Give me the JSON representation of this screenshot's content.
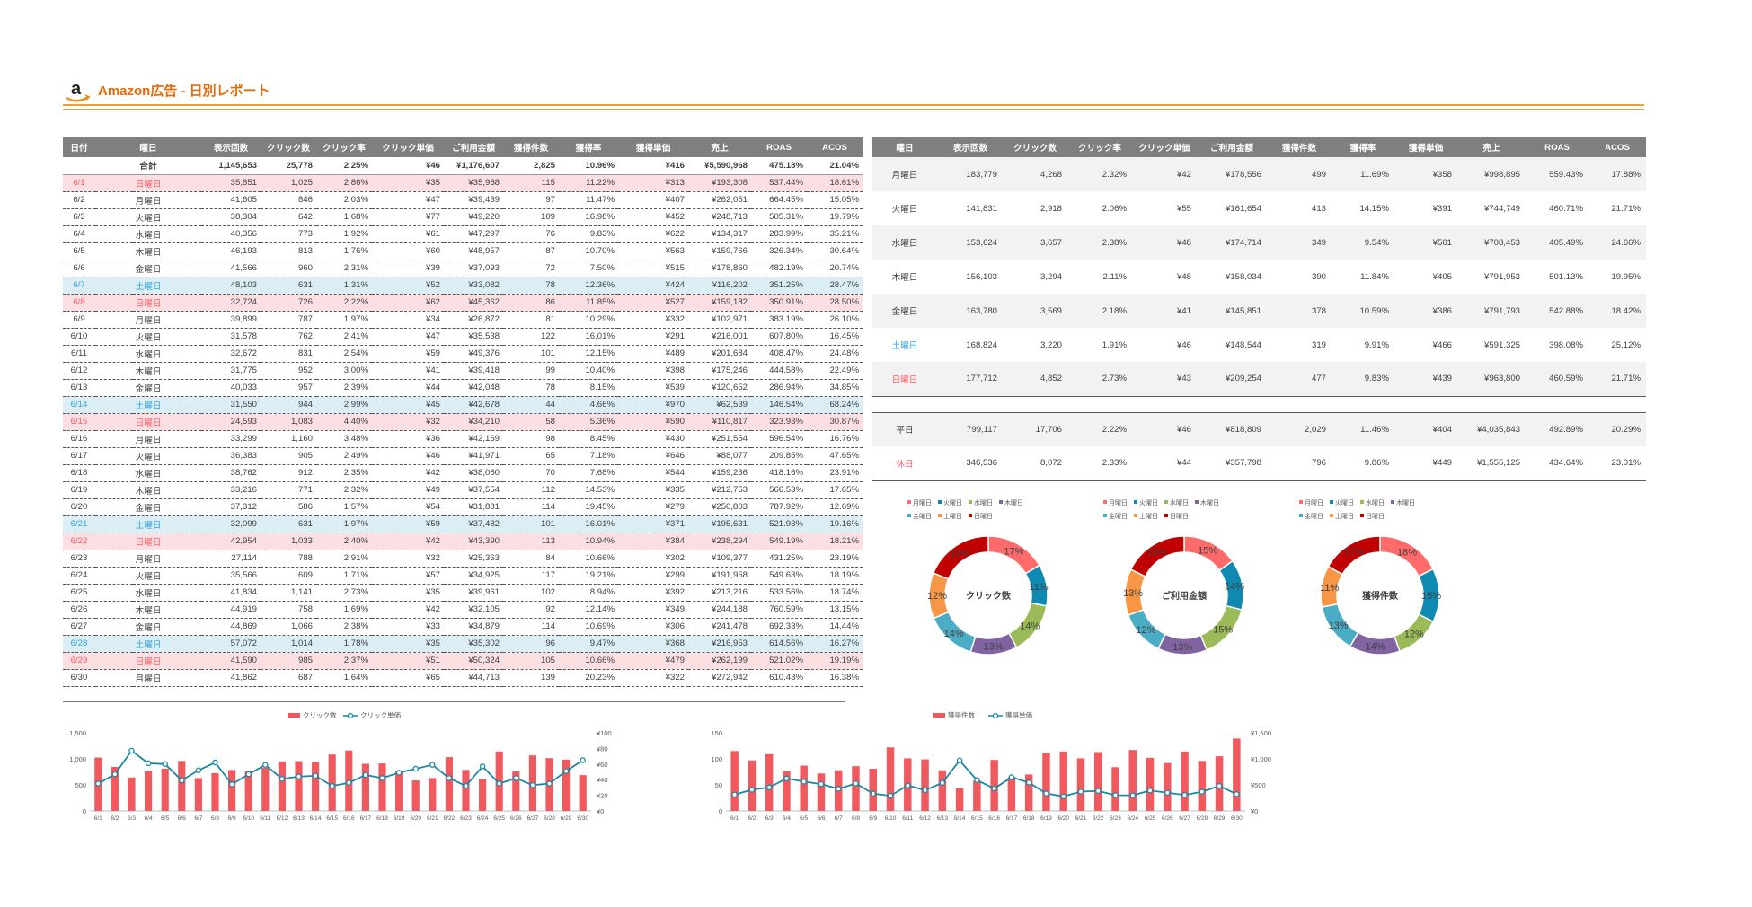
{
  "report": {
    "title": "Amazon広告 - 日別レポート",
    "logo_letter": "a"
  },
  "daily": {
    "headers": [
      "日付",
      "曜日",
      "表示回数",
      "クリック数",
      "クリック率",
      "クリック単価",
      "ご利用金額",
      "獲得件数",
      "獲得率",
      "獲得単価",
      "売上",
      "ROAS",
      "ACOS"
    ],
    "total": [
      "",
      "合計",
      "1,145,653",
      "25,778",
      "2.25%",
      "¥46",
      "¥1,176,607",
      "2,825",
      "10.96%",
      "¥416",
      "¥5,590,968",
      "475.18%",
      "21.04%"
    ],
    "rows": [
      {
        "type": "sun",
        "cells": [
          "6/1",
          "日曜日",
          "35,851",
          "1,025",
          "2.86%",
          "¥35",
          "¥35,968",
          "115",
          "11.22%",
          "¥313",
          "¥193,308",
          "537.44%",
          "18.61%"
        ]
      },
      {
        "type": "",
        "cells": [
          "6/2",
          "月曜日",
          "41,605",
          "846",
          "2.03%",
          "¥47",
          "¥39,439",
          "97",
          "11.47%",
          "¥407",
          "¥262,051",
          "664.45%",
          "15.05%"
        ]
      },
      {
        "type": "",
        "cells": [
          "6/3",
          "火曜日",
          "38,304",
          "642",
          "1.68%",
          "¥77",
          "¥49,220",
          "109",
          "16.98%",
          "¥452",
          "¥248,713",
          "505.31%",
          "19.79%"
        ]
      },
      {
        "type": "",
        "cells": [
          "6/4",
          "水曜日",
          "40,356",
          "773",
          "1.92%",
          "¥61",
          "¥47,297",
          "76",
          "9.83%",
          "¥622",
          "¥134,317",
          "283.99%",
          "35.21%"
        ]
      },
      {
        "type": "",
        "cells": [
          "6/5",
          "木曜日",
          "46,193",
          "813",
          "1.76%",
          "¥60",
          "¥48,957",
          "87",
          "10.70%",
          "¥563",
          "¥159,766",
          "326.34%",
          "30.64%"
        ]
      },
      {
        "type": "",
        "cells": [
          "6/6",
          "金曜日",
          "41,566",
          "960",
          "2.31%",
          "¥39",
          "¥37,093",
          "72",
          "7.50%",
          "¥515",
          "¥178,860",
          "482.19%",
          "20.74%"
        ]
      },
      {
        "type": "sat",
        "cells": [
          "6/7",
          "土曜日",
          "48,103",
          "631",
          "1.31%",
          "¥52",
          "¥33,082",
          "78",
          "12.36%",
          "¥424",
          "¥116,202",
          "351.25%",
          "28.47%"
        ]
      },
      {
        "type": "sun",
        "cells": [
          "6/8",
          "日曜日",
          "32,724",
          "726",
          "2.22%",
          "¥62",
          "¥45,362",
          "86",
          "11.85%",
          "¥527",
          "¥159,182",
          "350.91%",
          "28.50%"
        ]
      },
      {
        "type": "",
        "cells": [
          "6/9",
          "月曜日",
          "39,899",
          "787",
          "1.97%",
          "¥34",
          "¥26,872",
          "81",
          "10.29%",
          "¥332",
          "¥102,971",
          "383.19%",
          "26.10%"
        ]
      },
      {
        "type": "",
        "cells": [
          "6/10",
          "火曜日",
          "31,578",
          "762",
          "2.41%",
          "¥47",
          "¥35,538",
          "122",
          "16.01%",
          "¥291",
          "¥216,001",
          "607.80%",
          "16.45%"
        ]
      },
      {
        "type": "",
        "cells": [
          "6/11",
          "水曜日",
          "32,672",
          "831",
          "2.54%",
          "¥59",
          "¥49,376",
          "101",
          "12.15%",
          "¥489",
          "¥201,684",
          "408.47%",
          "24.48%"
        ]
      },
      {
        "type": "",
        "cells": [
          "6/12",
          "木曜日",
          "31,775",
          "952",
          "3.00%",
          "¥41",
          "¥39,418",
          "99",
          "10.40%",
          "¥398",
          "¥175,246",
          "444.58%",
          "22.49%"
        ]
      },
      {
        "type": "",
        "cells": [
          "6/13",
          "金曜日",
          "40,033",
          "957",
          "2.39%",
          "¥44",
          "¥42,048",
          "78",
          "8.15%",
          "¥539",
          "¥120,652",
          "286.94%",
          "34.85%"
        ]
      },
      {
        "type": "sat",
        "cells": [
          "6/14",
          "土曜日",
          "31,550",
          "944",
          "2.99%",
          "¥45",
          "¥42,678",
          "44",
          "4.66%",
          "¥970",
          "¥62,539",
          "146.54%",
          "68.24%"
        ]
      },
      {
        "type": "sun",
        "cells": [
          "6/15",
          "日曜日",
          "24,593",
          "1,083",
          "4.40%",
          "¥32",
          "¥34,210",
          "58",
          "5.36%",
          "¥590",
          "¥110,817",
          "323.93%",
          "30.87%"
        ]
      },
      {
        "type": "",
        "cells": [
          "6/16",
          "月曜日",
          "33,299",
          "1,160",
          "3.48%",
          "¥36",
          "¥42,169",
          "98",
          "8.45%",
          "¥430",
          "¥251,554",
          "596.54%",
          "16.76%"
        ]
      },
      {
        "type": "",
        "cells": [
          "6/17",
          "火曜日",
          "36,383",
          "905",
          "2.49%",
          "¥46",
          "¥41,971",
          "65",
          "7.18%",
          "¥646",
          "¥88,077",
          "209.85%",
          "47.65%"
        ]
      },
      {
        "type": "",
        "cells": [
          "6/18",
          "水曜日",
          "38,762",
          "912",
          "2.35%",
          "¥42",
          "¥38,080",
          "70",
          "7.68%",
          "¥544",
          "¥159,236",
          "418.16%",
          "23.91%"
        ]
      },
      {
        "type": "",
        "cells": [
          "6/19",
          "木曜日",
          "33,216",
          "771",
          "2.32%",
          "¥49",
          "¥37,554",
          "112",
          "14.53%",
          "¥335",
          "¥212,753",
          "566.53%",
          "17.65%"
        ]
      },
      {
        "type": "",
        "cells": [
          "6/20",
          "金曜日",
          "37,312",
          "586",
          "1.57%",
          "¥54",
          "¥31,831",
          "114",
          "19.45%",
          "¥279",
          "¥250,803",
          "787.92%",
          "12.69%"
        ]
      },
      {
        "type": "sat",
        "cells": [
          "6/21",
          "土曜日",
          "32,099",
          "631",
          "1.97%",
          "¥59",
          "¥37,482",
          "101",
          "16.01%",
          "¥371",
          "¥195,631",
          "521.93%",
          "19.16%"
        ]
      },
      {
        "type": "sun",
        "cells": [
          "6/22",
          "日曜日",
          "42,954",
          "1,033",
          "2.40%",
          "¥42",
          "¥43,390",
          "113",
          "10.94%",
          "¥384",
          "¥238,294",
          "549.19%",
          "18.21%"
        ]
      },
      {
        "type": "",
        "cells": [
          "6/23",
          "月曜日",
          "27,114",
          "788",
          "2.91%",
          "¥32",
          "¥25,363",
          "84",
          "10.66%",
          "¥302",
          "¥109,377",
          "431.25%",
          "23.19%"
        ]
      },
      {
        "type": "",
        "cells": [
          "6/24",
          "火曜日",
          "35,566",
          "609",
          "1.71%",
          "¥57",
          "¥34,925",
          "117",
          "19.21%",
          "¥299",
          "¥191,958",
          "549.63%",
          "18.19%"
        ]
      },
      {
        "type": "",
        "cells": [
          "6/25",
          "水曜日",
          "41,834",
          "1,141",
          "2.73%",
          "¥35",
          "¥39,961",
          "102",
          "8.94%",
          "¥392",
          "¥213,216",
          "533.56%",
          "18.74%"
        ]
      },
      {
        "type": "",
        "cells": [
          "6/26",
          "木曜日",
          "44,919",
          "758",
          "1.69%",
          "¥42",
          "¥32,105",
          "92",
          "12.14%",
          "¥349",
          "¥244,188",
          "760.59%",
          "13.15%"
        ]
      },
      {
        "type": "",
        "cells": [
          "6/27",
          "金曜日",
          "44,869",
          "1,066",
          "2.38%",
          "¥33",
          "¥34,879",
          "114",
          "10.69%",
          "¥306",
          "¥241,478",
          "692.33%",
          "14.44%"
        ]
      },
      {
        "type": "sat",
        "cells": [
          "6/28",
          "土曜日",
          "57,072",
          "1,014",
          "1.78%",
          "¥35",
          "¥35,302",
          "96",
          "9.47%",
          "¥368",
          "¥216,953",
          "614.56%",
          "16.27%"
        ]
      },
      {
        "type": "sun",
        "cells": [
          "6/29",
          "日曜日",
          "41,590",
          "985",
          "2.37%",
          "¥51",
          "¥50,324",
          "105",
          "10.66%",
          "¥479",
          "¥262,199",
          "521.02%",
          "19.19%"
        ]
      },
      {
        "type": "",
        "cells": [
          "6/30",
          "月曜日",
          "41,862",
          "687",
          "1.64%",
          "¥65",
          "¥44,713",
          "139",
          "20.23%",
          "¥322",
          "¥272,942",
          "610.43%",
          "16.38%"
        ]
      }
    ]
  },
  "weekday": {
    "headers": [
      "曜日",
      "表示回数",
      "クリック数",
      "クリック率",
      "クリック単価",
      "ご利用金額",
      "獲得件数",
      "獲得率",
      "獲得単価",
      "売上",
      "ROAS",
      "ACOS"
    ],
    "rows": [
      {
        "type": "",
        "cells": [
          "月曜日",
          "183,779",
          "4,268",
          "2.32%",
          "¥42",
          "¥178,556",
          "499",
          "11.69%",
          "¥358",
          "¥998,895",
          "559.43%",
          "17.88%"
        ]
      },
      {
        "type": "",
        "cells": [
          "火曜日",
          "141,831",
          "2,918",
          "2.06%",
          "¥55",
          "¥161,654",
          "413",
          "14.15%",
          "¥391",
          "¥744,749",
          "460.71%",
          "21.71%"
        ]
      },
      {
        "type": "",
        "cells": [
          "水曜日",
          "153,624",
          "3,657",
          "2.38%",
          "¥48",
          "¥174,714",
          "349",
          "9.54%",
          "¥501",
          "¥708,453",
          "405.49%",
          "24.66%"
        ]
      },
      {
        "type": "",
        "cells": [
          "木曜日",
          "156,103",
          "3,294",
          "2.11%",
          "¥48",
          "¥158,034",
          "390",
          "11.84%",
          "¥405",
          "¥791,953",
          "501.13%",
          "19.95%"
        ]
      },
      {
        "type": "",
        "cells": [
          "金曜日",
          "163,780",
          "3,569",
          "2.18%",
          "¥41",
          "¥145,851",
          "378",
          "10.59%",
          "¥386",
          "¥791,793",
          "542.88%",
          "18.42%"
        ]
      },
      {
        "type": "sat",
        "cells": [
          "土曜日",
          "168,824",
          "3,220",
          "1.91%",
          "¥46",
          "¥148,544",
          "319",
          "9.91%",
          "¥466",
          "¥591,325",
          "398.08%",
          "25.12%"
        ]
      },
      {
        "type": "sun",
        "cells": [
          "日曜日",
          "177,712",
          "4,852",
          "2.73%",
          "¥43",
          "¥209,254",
          "477",
          "9.83%",
          "¥439",
          "¥963,800",
          "460.59%",
          "21.71%"
        ]
      }
    ],
    "summary": [
      {
        "type": "",
        "cells": [
          "平日",
          "799,117",
          "17,706",
          "2.22%",
          "¥46",
          "¥818,809",
          "2,029",
          "11.46%",
          "¥404",
          "¥4,035,843",
          "492.89%",
          "20.29%"
        ]
      },
      {
        "type": "sun",
        "cells": [
          "休日",
          "346,536",
          "8,072",
          "2.33%",
          "¥44",
          "¥357,798",
          "796",
          "9.86%",
          "¥449",
          "¥1,555,125",
          "434.64%",
          "23.01%"
        ]
      }
    ]
  },
  "donut_legend": [
    "月曜日",
    "火曜日",
    "水曜日",
    "木曜日",
    "金曜日",
    "土曜日",
    "日曜日"
  ],
  "donut_colors": [
    "#ff6b6b",
    "#0f89b1",
    "#9bbb59",
    "#8064a2",
    "#4bacc6",
    "#f79646",
    "#c00000"
  ],
  "chart_data": [
    {
      "type": "pie",
      "title": "クリック数",
      "categories": [
        "月曜日",
        "火曜日",
        "水曜日",
        "木曜日",
        "金曜日",
        "土曜日",
        "日曜日"
      ],
      "values": [
        4268,
        2918,
        3657,
        3294,
        3569,
        3220,
        4852
      ],
      "labels": [
        "17%",
        "11%",
        "14%",
        "13%",
        "14%",
        "12%",
        "19%"
      ]
    },
    {
      "type": "pie",
      "title": "ご利用金額",
      "categories": [
        "月曜日",
        "火曜日",
        "水曜日",
        "木曜日",
        "金曜日",
        "土曜日",
        "日曜日"
      ],
      "values": [
        178556,
        161654,
        174714,
        158034,
        145851,
        148544,
        209254
      ],
      "labels": [
        "15%",
        "14%",
        "15%",
        "13%",
        "12%",
        "13%",
        "18%"
      ]
    },
    {
      "type": "pie",
      "title": "獲得件数",
      "categories": [
        "月曜日",
        "火曜日",
        "水曜日",
        "木曜日",
        "金曜日",
        "土曜日",
        "日曜日"
      ],
      "values": [
        499,
        413,
        349,
        390,
        378,
        319,
        477
      ],
      "labels": [
        "18%",
        "15%",
        "12%",
        "14%",
        "13%",
        "11%",
        "17%"
      ]
    },
    {
      "type": "bar",
      "legend": [
        "クリック数",
        "クリック単価"
      ],
      "categories": [
        "6/1",
        "6/2",
        "6/3",
        "6/4",
        "6/5",
        "6/6",
        "6/7",
        "6/8",
        "6/9",
        "6/10",
        "6/11",
        "6/12",
        "6/13",
        "6/14",
        "6/15",
        "6/16",
        "6/17",
        "6/18",
        "6/19",
        "6/20",
        "6/21",
        "6/22",
        "6/23",
        "6/24",
        "6/25",
        "6/26",
        "6/27",
        "6/28",
        "6/29",
        "6/30"
      ],
      "series": [
        {
          "name": "クリック数",
          "kind": "bar",
          "axis": "left",
          "values": [
            1025,
            846,
            642,
            773,
            813,
            960,
            631,
            726,
            787,
            762,
            831,
            952,
            957,
            944,
            1083,
            1160,
            905,
            912,
            771,
            586,
            631,
            1033,
            788,
            609,
            1141,
            758,
            1066,
            1014,
            985,
            687
          ]
        },
        {
          "name": "クリック単価",
          "kind": "line",
          "axis": "right",
          "values": [
            35,
            47,
            77,
            61,
            60,
            39,
            52,
            62,
            34,
            47,
            59,
            41,
            44,
            45,
            32,
            36,
            46,
            42,
            49,
            54,
            59,
            42,
            32,
            57,
            35,
            42,
            33,
            35,
            51,
            65
          ]
        }
      ],
      "ylim": [
        0,
        1500
      ],
      "yticks": [
        "0",
        "500",
        "1,000",
        "1,500"
      ],
      "y2lim": [
        0,
        100
      ],
      "y2ticks": [
        "¥0",
        "¥20",
        "¥40",
        "¥60",
        "¥80",
        "¥100"
      ]
    },
    {
      "type": "bar",
      "legend": [
        "獲得件数",
        "獲得単価"
      ],
      "categories": [
        "6/1",
        "6/2",
        "6/3",
        "6/4",
        "6/5",
        "6/6",
        "6/7",
        "6/8",
        "6/9",
        "6/10",
        "6/11",
        "6/12",
        "6/13",
        "6/14",
        "6/15",
        "6/16",
        "6/17",
        "6/18",
        "6/19",
        "6/20",
        "6/21",
        "6/22",
        "6/23",
        "6/24",
        "6/25",
        "6/26",
        "6/27",
        "6/28",
        "6/29",
        "6/30"
      ],
      "series": [
        {
          "name": "獲得件数",
          "kind": "bar",
          "axis": "left",
          "values": [
            115,
            97,
            109,
            76,
            87,
            72,
            78,
            86,
            81,
            122,
            101,
            99,
            78,
            44,
            58,
            98,
            65,
            70,
            112,
            114,
            101,
            113,
            84,
            117,
            102,
            92,
            114,
            96,
            105,
            139
          ]
        },
        {
          "name": "獲得単価",
          "kind": "line",
          "axis": "right",
          "values": [
            313,
            407,
            452,
            622,
            563,
            515,
            424,
            527,
            332,
            291,
            489,
            398,
            539,
            970,
            590,
            430,
            646,
            544,
            335,
            279,
            371,
            384,
            302,
            299,
            392,
            349,
            306,
            368,
            479,
            322
          ]
        }
      ],
      "ylim": [
        0,
        150
      ],
      "yticks": [
        "0",
        "50",
        "100",
        "150"
      ],
      "y2lim": [
        0,
        1500
      ],
      "y2ticks": [
        "¥0",
        "¥500",
        "¥1,000",
        "¥1,500"
      ]
    }
  ]
}
